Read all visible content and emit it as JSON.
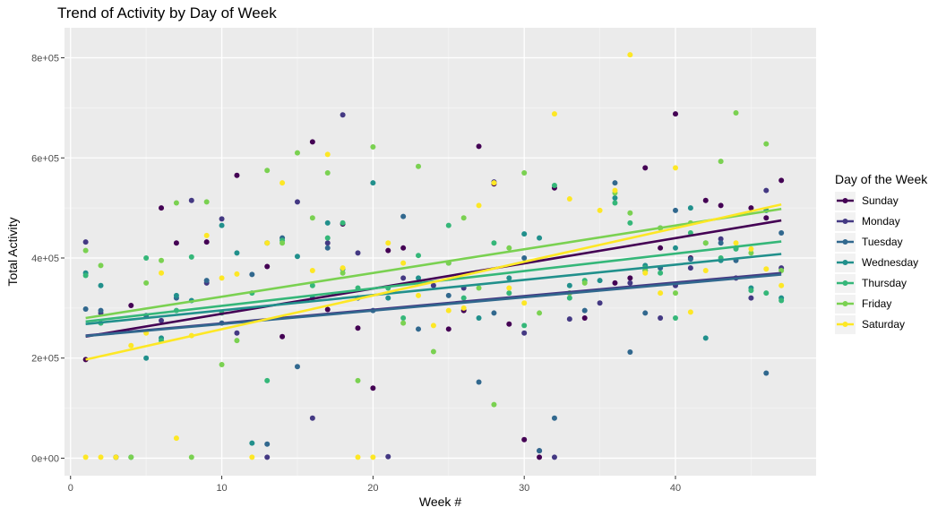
{
  "chart_data": {
    "type": "scatter",
    "title": "Trend of Activity by Day of Week",
    "xlabel": "Week #",
    "ylabel": "Total Activity",
    "xlim": [
      -0.4,
      49.3
    ],
    "ylim": [
      -35000,
      860000
    ],
    "x_ticks": [
      0,
      10,
      20,
      30,
      40
    ],
    "x_tick_labels": [
      "0",
      "10",
      "20",
      "30",
      "40"
    ],
    "y_ticks": [
      0,
      200000,
      400000,
      600000,
      800000
    ],
    "y_tick_labels": [
      "0e+00",
      "2e+05",
      "4e+05",
      "6e+05",
      "8e+05"
    ],
    "grid": true,
    "legend": {
      "title": "Day of the Week",
      "placement": "right"
    },
    "series": [
      {
        "name": "Sunday",
        "color": "#440154",
        "trend": [
          [
            1,
            243000
          ],
          [
            47,
            475000
          ]
        ],
        "points": [
          [
            1,
            197000
          ],
          [
            4,
            305000
          ],
          [
            6,
            500000
          ],
          [
            7,
            430000
          ],
          [
            9,
            432000
          ],
          [
            11,
            565000
          ],
          [
            13,
            383000
          ],
          [
            14,
            243000
          ],
          [
            16,
            632000
          ],
          [
            17,
            297000
          ],
          [
            18,
            468000
          ],
          [
            19,
            260000
          ],
          [
            20,
            140000
          ],
          [
            21,
            415000
          ],
          [
            22,
            420000
          ],
          [
            25,
            258000
          ],
          [
            26,
            295000
          ],
          [
            27,
            623000
          ],
          [
            28,
            548000
          ],
          [
            29,
            268000
          ],
          [
            30,
            37000
          ],
          [
            31,
            2000
          ],
          [
            32,
            540000
          ],
          [
            34,
            280000
          ],
          [
            36,
            350000
          ],
          [
            37,
            360000
          ],
          [
            38,
            580000
          ],
          [
            39,
            420000
          ],
          [
            40,
            688000
          ],
          [
            41,
            400000
          ],
          [
            42,
            515000
          ],
          [
            43,
            505000
          ],
          [
            45,
            500000
          ],
          [
            46,
            480000
          ],
          [
            47,
            555000
          ]
        ]
      },
      {
        "name": "Monday",
        "color": "#443983",
        "trend": [
          [
            1,
            245000
          ],
          [
            47,
            370000
          ]
        ],
        "points": [
          [
            1,
            432000
          ],
          [
            2,
            290000
          ],
          [
            3,
            2000
          ],
          [
            6,
            275000
          ],
          [
            8,
            515000
          ],
          [
            9,
            350000
          ],
          [
            10,
            478000
          ],
          [
            11,
            250000
          ],
          [
            13,
            2000
          ],
          [
            15,
            512000
          ],
          [
            16,
            80000
          ],
          [
            17,
            430000
          ],
          [
            18,
            686000
          ],
          [
            19,
            410000
          ],
          [
            21,
            3000
          ],
          [
            22,
            360000
          ],
          [
            24,
            345000
          ],
          [
            26,
            340000
          ],
          [
            28,
            552000
          ],
          [
            30,
            250000
          ],
          [
            31,
            15000
          ],
          [
            32,
            2000
          ],
          [
            33,
            278000
          ],
          [
            35,
            310000
          ],
          [
            37,
            350000
          ],
          [
            38,
            375000
          ],
          [
            39,
            280000
          ],
          [
            40,
            345000
          ],
          [
            41,
            380000
          ],
          [
            43,
            438000
          ],
          [
            44,
            360000
          ],
          [
            45,
            320000
          ],
          [
            46,
            535000
          ],
          [
            47,
            380000
          ]
        ]
      },
      {
        "name": "Tuesday",
        "color": "#31688e",
        "trend": [
          [
            1,
            244000
          ],
          [
            47,
            367000
          ]
        ],
        "points": [
          [
            1,
            298000
          ],
          [
            2,
            295000
          ],
          [
            3,
            2000
          ],
          [
            5,
            285000
          ],
          [
            7,
            320000
          ],
          [
            9,
            355000
          ],
          [
            10,
            270000
          ],
          [
            12,
            367000
          ],
          [
            13,
            28000
          ],
          [
            14,
            440000
          ],
          [
            15,
            183000
          ],
          [
            17,
            420000
          ],
          [
            19,
            320000
          ],
          [
            20,
            295000
          ],
          [
            22,
            483000
          ],
          [
            23,
            258000
          ],
          [
            25,
            325000
          ],
          [
            27,
            152000
          ],
          [
            28,
            290000
          ],
          [
            30,
            400000
          ],
          [
            31,
            15000
          ],
          [
            32,
            80000
          ],
          [
            33,
            330000
          ],
          [
            34,
            295000
          ],
          [
            36,
            550000
          ],
          [
            37,
            212000
          ],
          [
            38,
            290000
          ],
          [
            39,
            380000
          ],
          [
            40,
            495000
          ],
          [
            41,
            398000
          ],
          [
            43,
            430000
          ],
          [
            44,
            395000
          ],
          [
            46,
            170000
          ],
          [
            47,
            450000
          ]
        ]
      },
      {
        "name": "Wednesday",
        "color": "#21908c",
        "trend": [
          [
            1,
            268000
          ],
          [
            47,
            408000
          ]
        ],
        "points": [
          [
            1,
            370000
          ],
          [
            2,
            345000
          ],
          [
            4,
            2000
          ],
          [
            5,
            200000
          ],
          [
            6,
            240000
          ],
          [
            7,
            325000
          ],
          [
            8,
            315000
          ],
          [
            10,
            465000
          ],
          [
            11,
            410000
          ],
          [
            12,
            30000
          ],
          [
            13,
            430000
          ],
          [
            15,
            403000
          ],
          [
            16,
            320000
          ],
          [
            17,
            470000
          ],
          [
            18,
            378000
          ],
          [
            20,
            550000
          ],
          [
            21,
            320000
          ],
          [
            23,
            360000
          ],
          [
            25,
            390000
          ],
          [
            27,
            280000
          ],
          [
            29,
            360000
          ],
          [
            30,
            448000
          ],
          [
            31,
            440000
          ],
          [
            33,
            345000
          ],
          [
            35,
            355000
          ],
          [
            36,
            520000
          ],
          [
            38,
            385000
          ],
          [
            39,
            460000
          ],
          [
            40,
            420000
          ],
          [
            41,
            500000
          ],
          [
            42,
            240000
          ],
          [
            43,
            395000
          ],
          [
            44,
            420000
          ],
          [
            45,
            340000
          ],
          [
            46,
            495000
          ],
          [
            47,
            320000
          ]
        ]
      },
      {
        "name": "Thursday",
        "color": "#35b779",
        "trend": [
          [
            1,
            273000
          ],
          [
            47,
            433000
          ]
        ],
        "points": [
          [
            1,
            365000
          ],
          [
            2,
            270000
          ],
          [
            5,
            400000
          ],
          [
            6,
            235000
          ],
          [
            7,
            295000
          ],
          [
            8,
            402000
          ],
          [
            10,
            290000
          ],
          [
            12,
            330000
          ],
          [
            13,
            155000
          ],
          [
            14,
            435000
          ],
          [
            16,
            345000
          ],
          [
            17,
            440000
          ],
          [
            18,
            470000
          ],
          [
            19,
            340000
          ],
          [
            21,
            340000
          ],
          [
            22,
            280000
          ],
          [
            23,
            405000
          ],
          [
            25,
            465000
          ],
          [
            26,
            320000
          ],
          [
            28,
            430000
          ],
          [
            29,
            330000
          ],
          [
            30,
            265000
          ],
          [
            32,
            545000
          ],
          [
            33,
            320000
          ],
          [
            34,
            355000
          ],
          [
            36,
            510000
          ],
          [
            37,
            470000
          ],
          [
            38,
            380000
          ],
          [
            39,
            370000
          ],
          [
            40,
            280000
          ],
          [
            41,
            450000
          ],
          [
            42,
            430000
          ],
          [
            43,
            400000
          ],
          [
            44,
            418000
          ],
          [
            45,
            335000
          ],
          [
            46,
            330000
          ],
          [
            47,
            315000
          ]
        ]
      },
      {
        "name": "Friday",
        "color": "#7ad151",
        "trend": [
          [
            1,
            280000
          ],
          [
            47,
            498000
          ]
        ],
        "points": [
          [
            1,
            415000
          ],
          [
            2,
            385000
          ],
          [
            4,
            2000
          ],
          [
            5,
            350000
          ],
          [
            6,
            395000
          ],
          [
            7,
            510000
          ],
          [
            8,
            2000
          ],
          [
            9,
            512000
          ],
          [
            10,
            187000
          ],
          [
            11,
            235000
          ],
          [
            13,
            575000
          ],
          [
            14,
            430000
          ],
          [
            15,
            610000
          ],
          [
            16,
            480000
          ],
          [
            17,
            570000
          ],
          [
            18,
            370000
          ],
          [
            19,
            155000
          ],
          [
            20,
            622000
          ],
          [
            22,
            270000
          ],
          [
            23,
            583000
          ],
          [
            24,
            213000
          ],
          [
            25,
            390000
          ],
          [
            26,
            480000
          ],
          [
            27,
            340000
          ],
          [
            28,
            107000
          ],
          [
            29,
            420000
          ],
          [
            30,
            570000
          ],
          [
            31,
            290000
          ],
          [
            33,
            330000
          ],
          [
            34,
            350000
          ],
          [
            36,
            530000
          ],
          [
            37,
            490000
          ],
          [
            38,
            375000
          ],
          [
            39,
            460000
          ],
          [
            40,
            330000
          ],
          [
            41,
            470000
          ],
          [
            42,
            430000
          ],
          [
            43,
            593000
          ],
          [
            44,
            690000
          ],
          [
            45,
            410000
          ],
          [
            46,
            628000
          ],
          [
            47,
            375000
          ]
        ]
      },
      {
        "name": "Saturday",
        "color": "#fde725",
        "trend": [
          [
            1,
            197000
          ],
          [
            47,
            507000
          ]
        ],
        "points": [
          [
            1,
            2000
          ],
          [
            2,
            2000
          ],
          [
            3,
            2000
          ],
          [
            4,
            225000
          ],
          [
            5,
            250000
          ],
          [
            6,
            370000
          ],
          [
            7,
            40000
          ],
          [
            8,
            245000
          ],
          [
            9,
            445000
          ],
          [
            10,
            360000
          ],
          [
            11,
            368000
          ],
          [
            12,
            2000
          ],
          [
            13,
            430000
          ],
          [
            14,
            550000
          ],
          [
            16,
            375000
          ],
          [
            17,
            607000
          ],
          [
            18,
            380000
          ],
          [
            19,
            2000
          ],
          [
            20,
            2000
          ],
          [
            21,
            430000
          ],
          [
            22,
            390000
          ],
          [
            23,
            325000
          ],
          [
            24,
            265000
          ],
          [
            25,
            295000
          ],
          [
            26,
            300000
          ],
          [
            27,
            505000
          ],
          [
            28,
            550000
          ],
          [
            29,
            340000
          ],
          [
            30,
            310000
          ],
          [
            32,
            688000
          ],
          [
            33,
            518000
          ],
          [
            35,
            495000
          ],
          [
            36,
            535000
          ],
          [
            37,
            806000
          ],
          [
            38,
            370000
          ],
          [
            39,
            330000
          ],
          [
            40,
            580000
          ],
          [
            41,
            292000
          ],
          [
            42,
            375000
          ],
          [
            44,
            430000
          ],
          [
            45,
            418000
          ],
          [
            46,
            378000
          ],
          [
            47,
            345000
          ]
        ]
      }
    ]
  }
}
